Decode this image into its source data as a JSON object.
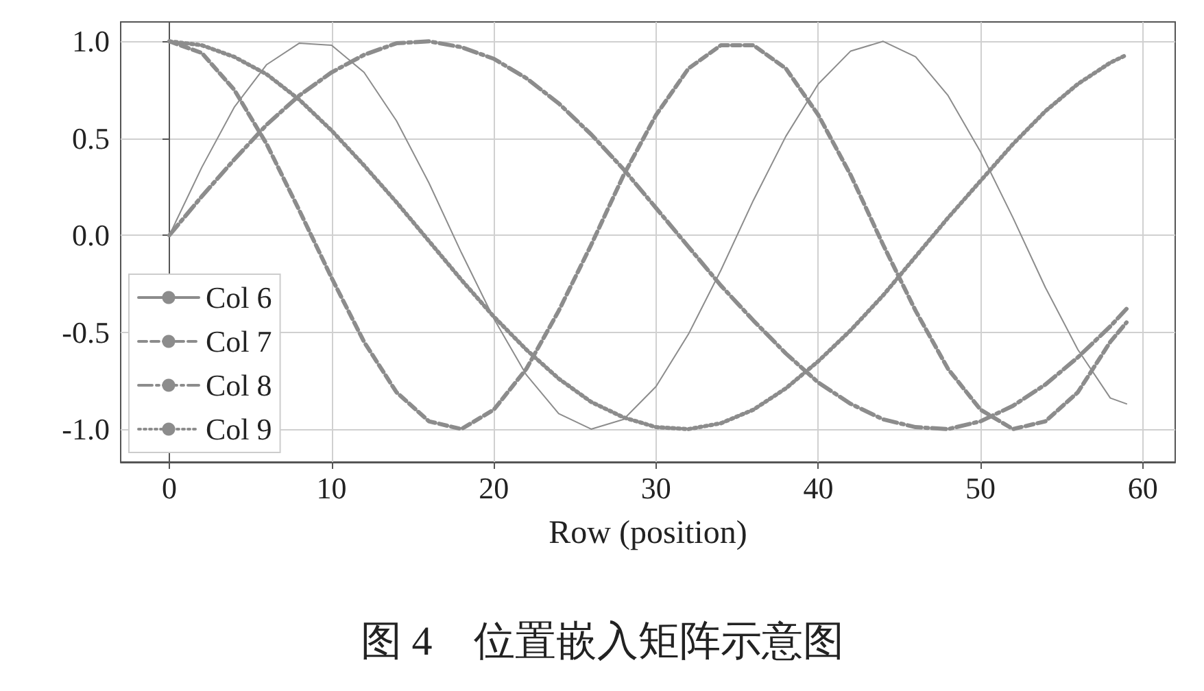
{
  "chart_data": {
    "type": "line",
    "title": "图 4　位置嵌入矩阵示意图",
    "xlabel": "Row (position)",
    "x": [
      0,
      2,
      4,
      6,
      8,
      10,
      12,
      14,
      16,
      18,
      20,
      22,
      24,
      26,
      28,
      30,
      32,
      34,
      36,
      38,
      40,
      42,
      44,
      46,
      48,
      50,
      52,
      54,
      56,
      58,
      59
    ],
    "series": [
      {
        "name": "Col 6",
        "color": "#8c8c8c",
        "line_style": "solid",
        "values": [
          0,
          0.35,
          0.66,
          0.88,
          0.99,
          0.98,
          0.84,
          0.59,
          0.27,
          -0.09,
          -0.43,
          -0.72,
          -0.92,
          -1.0,
          -0.95,
          -0.78,
          -0.51,
          -0.18,
          0.18,
          0.51,
          0.78,
          0.95,
          1.0,
          0.92,
          0.72,
          0.43,
          0.09,
          -0.27,
          -0.59,
          -0.84,
          -0.87
        ]
      },
      {
        "name": "Col 7",
        "color": "#8c8c8c",
        "line_style": "dashed",
        "values": [
          1,
          0.94,
          0.75,
          0.47,
          0.13,
          -0.22,
          -0.55,
          -0.81,
          -0.96,
          -1.0,
          -0.9,
          -0.69,
          -0.39,
          -0.05,
          0.31,
          0.62,
          0.86,
          0.98,
          0.98,
          0.86,
          0.62,
          0.31,
          -0.05,
          -0.39,
          -0.69,
          -0.9,
          -1.0,
          -0.96,
          -0.81,
          -0.55,
          -0.45
        ]
      },
      {
        "name": "Col 8",
        "color": "#8c8c8c",
        "line_style": "dashdot",
        "values": [
          0,
          0.2,
          0.39,
          0.57,
          0.72,
          0.84,
          0.93,
          0.99,
          1.0,
          0.97,
          0.91,
          0.81,
          0.68,
          0.52,
          0.34,
          0.14,
          -0.06,
          -0.26,
          -0.44,
          -0.61,
          -0.76,
          -0.87,
          -0.95,
          -0.99,
          -1.0,
          -0.96,
          -0.88,
          -0.77,
          -0.63,
          -0.47,
          -0.38
        ]
      },
      {
        "name": "Col 9",
        "color": "#8c8c8c",
        "line_style": "dotted",
        "values": [
          1,
          0.98,
          0.92,
          0.83,
          0.7,
          0.54,
          0.36,
          0.17,
          -0.03,
          -0.23,
          -0.42,
          -0.59,
          -0.74,
          -0.86,
          -0.94,
          -0.99,
          -1.0,
          -0.97,
          -0.9,
          -0.79,
          -0.65,
          -0.49,
          -0.31,
          -0.11,
          0.09,
          0.28,
          0.47,
          0.64,
          0.78,
          0.89,
          0.93
        ]
      }
    ],
    "xlim": [
      -3,
      62
    ],
    "xticks": [
      0,
      10,
      20,
      30,
      40,
      50,
      60
    ],
    "ylim": [
      -1.17,
      1.1
    ],
    "yticks": [
      {
        "value": -1,
        "label": "-1.0"
      },
      {
        "value": -0.5,
        "label": "-0.5"
      },
      {
        "value": 0,
        "label": "0.0"
      },
      {
        "value": 0.5,
        "label": "0.5"
      },
      {
        "value": 1,
        "label": "1.0"
      }
    ],
    "grid": true,
    "legend": "bottom left",
    "marker": "none"
  }
}
